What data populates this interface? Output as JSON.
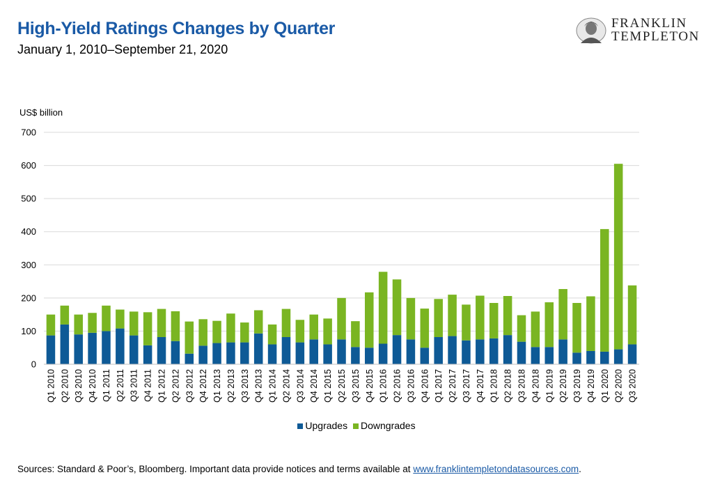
{
  "header": {
    "title": "High-Yield Ratings Changes by Quarter",
    "subtitle": "January 1, 2010–September 21, 2020"
  },
  "logo": {
    "line1": "FRANKLIN",
    "line2": "TEMPLETON"
  },
  "colors": {
    "upgrades": "#0e5a96",
    "downgrades": "#7ab522",
    "gridline": "#d9d9d9",
    "title": "#1a5aa6"
  },
  "chart_data": {
    "type": "bar",
    "stacked": true,
    "ylabel": "US$ billion",
    "ylim": [
      0,
      700
    ],
    "yticks": [
      0,
      100,
      200,
      300,
      400,
      500,
      600,
      700
    ],
    "grid": true,
    "legend_position": "bottom",
    "categories": [
      "Q1 2010",
      "Q2 2010",
      "Q3 2010",
      "Q4 2010",
      "Q1 2011",
      "Q2 2011",
      "Q3 2011",
      "Q4 2011",
      "Q1 2012",
      "Q2 2012",
      "Q3 2012",
      "Q4 2012",
      "Q1 2013",
      "Q2 2013",
      "Q3 2013",
      "Q4 2013",
      "Q1 2014",
      "Q2 2014",
      "Q3 2014",
      "Q4 2014",
      "Q1 2015",
      "Q2 2015",
      "Q3 2015",
      "Q4 2015",
      "Q1 2016",
      "Q2 2016",
      "Q3 2016",
      "Q4 2016",
      "Q1 2017",
      "Q2 2017",
      "Q3 2017",
      "Q4 2017",
      "Q1 2018",
      "Q2 2018",
      "Q3 2018",
      "Q4 2018",
      "Q1 2019",
      "Q2 2019",
      "Q3 2019",
      "Q4 2019",
      "Q1 2020",
      "Q2 2020",
      "Q3 2020"
    ],
    "series": [
      {
        "name": "Upgrades",
        "values": [
          87,
          120,
          90,
          95,
          100,
          108,
          87,
          57,
          82,
          70,
          32,
          56,
          64,
          66,
          66,
          93,
          60,
          82,
          66,
          75,
          60,
          75,
          52,
          50,
          62,
          88,
          75,
          50,
          82,
          85,
          72,
          75,
          78,
          88,
          68,
          52,
          52,
          75,
          35,
          40,
          38,
          45,
          60
        ]
      },
      {
        "name": "Downgrades",
        "values": [
          63,
          57,
          60,
          60,
          77,
          57,
          72,
          100,
          85,
          90,
          97,
          80,
          67,
          87,
          60,
          70,
          60,
          85,
          68,
          75,
          78,
          125,
          78,
          167,
          217,
          168,
          125,
          118,
          115,
          125,
          108,
          132,
          107,
          118,
          80,
          107,
          135,
          152,
          150,
          165,
          370,
          560,
          178
        ]
      }
    ]
  },
  "footer": {
    "source_text": "Sources: Standard & Poor’s, Bloomberg. Important data provide notices and terms available at ",
    "source_link": "www.franklintempletondatasources.com",
    "source_end": "."
  }
}
